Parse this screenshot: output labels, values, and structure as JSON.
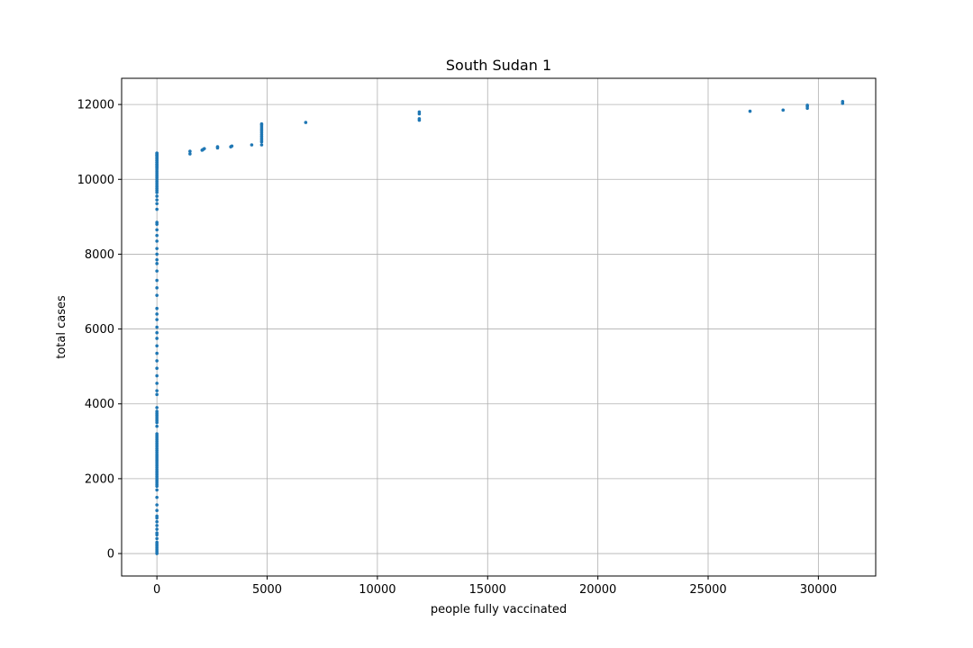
{
  "chart_data": {
    "type": "scatter",
    "title": "South Sudan 1",
    "xlabel": "people fully vaccinated",
    "ylabel": "total cases",
    "xlim": [
      -1600,
      32600
    ],
    "ylim": [
      -600,
      12700
    ],
    "xticks": [
      0,
      5000,
      10000,
      15000,
      20000,
      25000,
      30000
    ],
    "yticks": [
      0,
      2000,
      4000,
      6000,
      8000,
      10000,
      12000
    ],
    "grid": true,
    "marker_color": "#1f77b4",
    "series": [
      {
        "name": "total cases",
        "x": [
          0,
          0,
          0,
          0,
          0,
          0,
          0,
          0,
          0,
          0,
          0,
          0,
          0,
          0,
          0,
          0,
          0,
          0,
          0,
          0,
          0,
          0,
          0,
          0,
          0,
          0,
          0,
          0,
          0,
          0,
          0,
          0,
          0,
          0,
          0,
          0,
          0,
          0,
          0,
          0,
          0,
          0,
          0,
          0,
          0,
          0,
          0,
          0,
          0,
          0,
          0,
          0,
          0,
          0,
          0,
          0,
          0,
          0,
          0,
          0,
          0,
          0,
          0,
          0,
          0,
          0,
          0,
          0,
          0,
          0,
          0,
          0,
          0,
          0,
          0,
          0,
          0,
          0,
          0,
          0,
          0,
          0,
          0,
          0,
          0,
          0,
          0,
          0,
          0,
          0,
          0,
          0,
          0,
          0,
          0,
          0,
          0,
          0,
          0,
          0,
          0,
          0,
          0,
          0,
          0,
          0,
          0,
          0,
          0,
          0,
          0,
          0,
          0,
          0,
          0,
          0,
          0,
          0,
          0,
          0,
          1500,
          1500,
          2050,
          2100,
          2150,
          2750,
          2750,
          3350,
          3400,
          4300,
          4750,
          4750,
          4750,
          4750,
          4750,
          4750,
          4750,
          4750,
          4750,
          4750,
          4750,
          4750,
          6750,
          11900,
          11900,
          11900,
          11900,
          26900,
          28400,
          29500,
          29500,
          29500,
          31100,
          31100
        ],
        "y": [
          0,
          50,
          100,
          150,
          200,
          250,
          300,
          400,
          500,
          550,
          650,
          750,
          850,
          950,
          1000,
          1150,
          1300,
          1500,
          1700,
          1800,
          1850,
          1900,
          1950,
          2000,
          2050,
          2100,
          2150,
          2200,
          2250,
          2300,
          2350,
          2400,
          2450,
          2500,
          2550,
          2600,
          2650,
          2700,
          2750,
          2800,
          2850,
          2900,
          2950,
          3000,
          3050,
          3100,
          3150,
          3200,
          3400,
          3500,
          3550,
          3600,
          3650,
          3700,
          3750,
          3800,
          3900,
          4250,
          4350,
          4550,
          4750,
          4950,
          5150,
          5350,
          5550,
          5750,
          5900,
          6050,
          6250,
          6400,
          6550,
          6900,
          7100,
          7300,
          7550,
          7750,
          7850,
          8000,
          8150,
          8350,
          8500,
          8650,
          8800,
          8850,
          9200,
          9350,
          9450,
          9550,
          9650,
          9700,
          9750,
          9800,
          9850,
          9900,
          9950,
          10000,
          10050,
          10100,
          10150,
          10200,
          10250,
          10300,
          10350,
          10400,
          10450,
          10500,
          10550,
          10600,
          10650,
          10650,
          10700,
          10700,
          10650,
          10600,
          10550,
          10500,
          10450,
          10400,
          10350,
          10300,
          10680,
          10750,
          10780,
          10800,
          10820,
          10840,
          10870,
          10870,
          10890,
          10920,
          10920,
          11000,
          11050,
          11100,
          11150,
          11200,
          11250,
          11300,
          11350,
          11400,
          11450,
          11480,
          11520,
          11580,
          11620,
          11750,
          11800,
          11820,
          11850,
          11900,
          11950,
          11980,
          12030,
          12080
        ]
      }
    ]
  }
}
